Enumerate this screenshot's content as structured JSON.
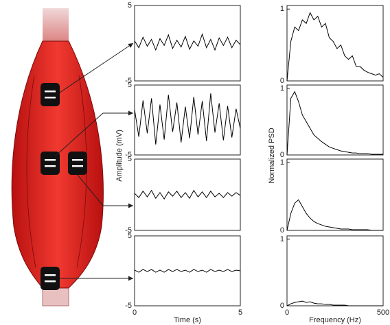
{
  "chart_data": [
    {
      "type": "line",
      "x": [
        0,
        0.2,
        0.4,
        0.6,
        0.8,
        1,
        1.2,
        1.4,
        1.6,
        1.8,
        2,
        2.2,
        2.4,
        2.6,
        2.8,
        3,
        3.2,
        3.4,
        3.6,
        3.8,
        4,
        4.2,
        4.4,
        4.6,
        4.8,
        5
      ],
      "values": [
        0.3,
        -0.6,
        0.8,
        -0.4,
        0.5,
        -0.9,
        0.6,
        -0.3,
        1.1,
        -0.7,
        0.4,
        -0.5,
        0.9,
        -0.8,
        0.3,
        -0.4,
        1.2,
        -0.6,
        0.5,
        -0.9,
        0.7,
        -0.3,
        0.8,
        -0.6,
        0.4,
        -0.2
      ],
      "color": "#000000",
      "xlim": [
        0,
        5
      ],
      "ylim": [
        -5,
        5
      ],
      "yticks": [
        -5,
        5
      ]
    },
    {
      "type": "line",
      "x": [
        0,
        0.2,
        0.4,
        0.6,
        0.8,
        1,
        1.2,
        1.4,
        1.6,
        1.8,
        2,
        2.2,
        2.4,
        2.6,
        2.8,
        3,
        3.2,
        3.4,
        3.6,
        3.8,
        4,
        4.2,
        4.4,
        4.6,
        4.8,
        5
      ],
      "values": [
        1.5,
        -2.4,
        2.8,
        -1.9,
        3.1,
        -3.5,
        2.2,
        -2.8,
        3.6,
        -1.7,
        2.5,
        -3.2,
        1.9,
        -2.6,
        3.3,
        -2.1,
        2.7,
        -3.0,
        3.8,
        -1.8,
        2.4,
        -2.9,
        2.0,
        -2.5,
        1.6,
        -1.2
      ],
      "color": "#000000",
      "xlim": [
        0,
        5
      ],
      "ylim": [
        -5,
        5
      ],
      "yticks": [
        -5,
        5
      ],
      "ylabel": "Amplitude (mV)"
    },
    {
      "type": "line",
      "x": [
        0,
        0.2,
        0.4,
        0.6,
        0.8,
        1,
        1.2,
        1.4,
        1.6,
        1.8,
        2,
        2.2,
        2.4,
        2.6,
        2.8,
        3,
        3.2,
        3.4,
        3.6,
        3.8,
        4,
        4.2,
        4.4,
        4.6,
        4.8,
        5
      ],
      "values": [
        0.2,
        -0.4,
        0.5,
        -0.3,
        0.6,
        -0.5,
        0.3,
        -0.6,
        0.4,
        -0.2,
        0.5,
        -0.4,
        0.3,
        -0.5,
        0.6,
        -0.3,
        0.4,
        -0.4,
        0.5,
        -0.3,
        0.2,
        -0.4,
        0.3,
        -0.2,
        0.3,
        -0.1
      ],
      "color": "#000000",
      "xlim": [
        0,
        5
      ],
      "ylim": [
        -5,
        5
      ],
      "yticks": [
        -5,
        5
      ]
    },
    {
      "type": "line",
      "x": [
        0,
        0.2,
        0.4,
        0.6,
        0.8,
        1,
        1.2,
        1.4,
        1.6,
        1.8,
        2,
        2.2,
        2.4,
        2.6,
        2.8,
        3,
        3.2,
        3.4,
        3.6,
        3.8,
        4,
        4.2,
        4.4,
        4.6,
        4.8,
        5
      ],
      "values": [
        0.1,
        -0.2,
        0.2,
        -0.1,
        0.2,
        -0.2,
        0.1,
        -0.2,
        0.2,
        -0.1,
        0.2,
        -0.1,
        0.1,
        -0.2,
        0.2,
        -0.1,
        0.1,
        -0.2,
        0.2,
        -0.1,
        0.1,
        -0.1,
        0.2,
        -0.1,
        0.1,
        0
      ],
      "color": "#000000",
      "xlim": [
        0,
        5
      ],
      "ylim": [
        -5,
        5
      ],
      "yticks": [
        -5,
        5
      ],
      "xticks": [
        0,
        5
      ],
      "xlabel": "Time (s)"
    },
    {
      "type": "line",
      "x": [
        0,
        20,
        40,
        60,
        80,
        100,
        120,
        140,
        160,
        180,
        200,
        220,
        240,
        260,
        280,
        300,
        320,
        340,
        360,
        380,
        400,
        420,
        440,
        460,
        480,
        500
      ],
      "values": [
        0,
        0.55,
        0.75,
        0.7,
        0.85,
        0.8,
        0.95,
        0.85,
        0.9,
        0.75,
        0.8,
        0.6,
        0.55,
        0.45,
        0.5,
        0.35,
        0.3,
        0.35,
        0.2,
        0.2,
        0.15,
        0.12,
        0.1,
        0.08,
        0.1,
        0.05
      ],
      "color": "#000000",
      "xlim": [
        0,
        500
      ],
      "ylim": [
        0,
        1.05
      ],
      "yticks": [
        0,
        1
      ]
    },
    {
      "type": "line",
      "x": [
        0,
        20,
        40,
        60,
        80,
        100,
        120,
        140,
        160,
        180,
        200,
        220,
        240,
        260,
        280,
        300,
        320,
        340,
        360,
        380,
        400,
        420,
        440,
        460,
        480,
        500
      ],
      "values": [
        0,
        0.85,
        0.95,
        0.8,
        0.6,
        0.5,
        0.4,
        0.3,
        0.25,
        0.2,
        0.16,
        0.12,
        0.1,
        0.08,
        0.06,
        0.05,
        0.04,
        0.03,
        0.03,
        0.02,
        0.02,
        0.02,
        0.01,
        0.01,
        0.01,
        0.01
      ],
      "color": "#000000",
      "xlim": [
        0,
        500
      ],
      "ylim": [
        0,
        1.05
      ],
      "yticks": [
        0,
        1
      ],
      "ylabel": "Normalized PSD"
    },
    {
      "type": "line",
      "x": [
        0,
        20,
        40,
        60,
        80,
        100,
        120,
        140,
        160,
        180,
        200,
        220,
        240,
        260,
        280,
        300,
        320,
        340,
        360,
        380,
        400,
        420,
        440,
        460,
        480,
        500
      ],
      "values": [
        0,
        0.25,
        0.4,
        0.45,
        0.35,
        0.25,
        0.18,
        0.13,
        0.1,
        0.08,
        0.06,
        0.05,
        0.04,
        0.03,
        0.02,
        0.02,
        0.02,
        0.01,
        0.01,
        0.01,
        0.01,
        0.01,
        0,
        0,
        0,
        0
      ],
      "color": "#000000",
      "xlim": [
        0,
        500
      ],
      "ylim": [
        0,
        1.05
      ],
      "yticks": [
        0,
        1
      ]
    },
    {
      "type": "line",
      "x": [
        0,
        20,
        40,
        60,
        80,
        100,
        120,
        140,
        160,
        180,
        200,
        220,
        240,
        260,
        280,
        300,
        320,
        340,
        360,
        380,
        400,
        420,
        440,
        460,
        480,
        500
      ],
      "values": [
        0,
        0.03,
        0.05,
        0.06,
        0.07,
        0.05,
        0.06,
        0.04,
        0.03,
        0.03,
        0.02,
        0.02,
        0.01,
        0.01,
        0.01,
        0.01,
        0,
        0,
        0,
        0,
        0,
        0,
        0,
        0,
        0,
        0
      ],
      "color": "#000000",
      "xlim": [
        0,
        500
      ],
      "ylim": [
        0,
        1.05
      ],
      "yticks": [
        0,
        1
      ],
      "xticks": [
        0,
        500
      ],
      "xlabel": "Frequency (Hz)"
    }
  ]
}
